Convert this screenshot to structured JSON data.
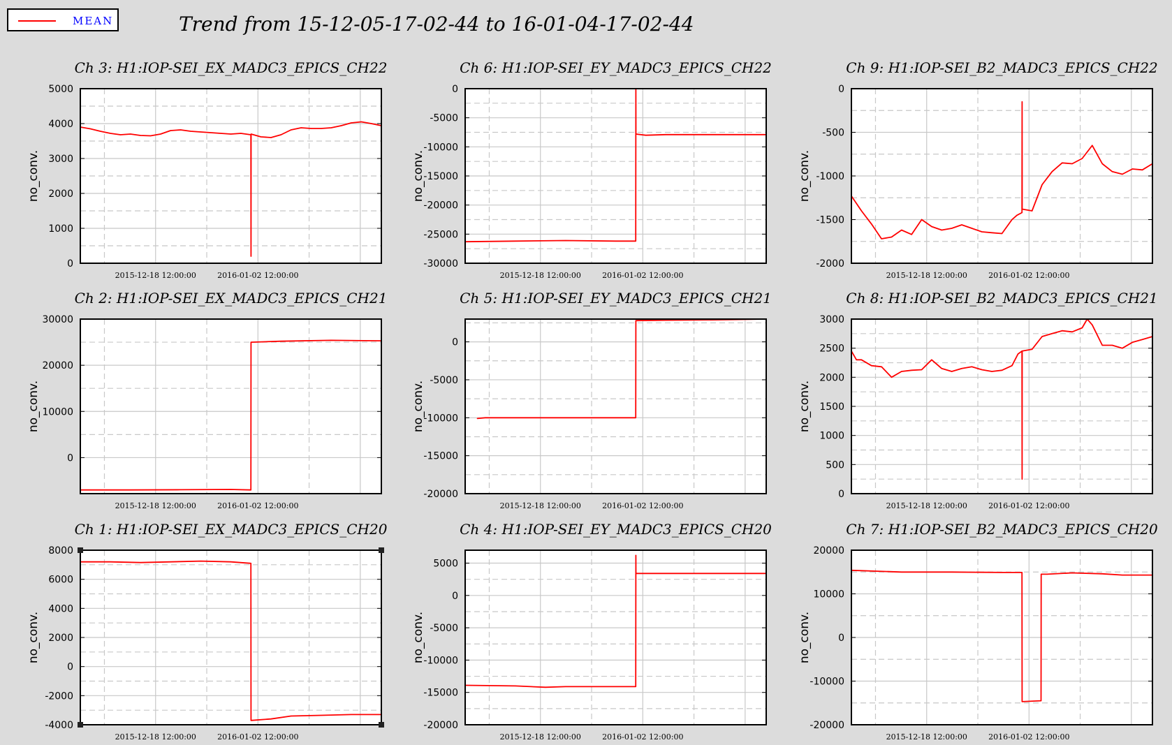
{
  "title": "Trend from 15-12-05-17-02-44 to 16-01-04-17-02-44",
  "legend": {
    "label": "MEAN",
    "color": "#ff0000"
  },
  "colors": {
    "background": "#dcdcdc",
    "plot_background": "#ffffff",
    "line": "#ff0000",
    "grid": "#c8c8c8"
  },
  "chart_data": [
    {
      "type": "line",
      "title": "Ch 3: H1:IOP-SEI_EX_MADC3_EPICS_CH22",
      "ylabel": "no_conv.",
      "xlabel": "",
      "x_ticks": [
        "2015-12-18 12:00:00",
        "2016-01-02 12:00:00"
      ],
      "xlim": [
        0,
        30
      ],
      "ylim": [
        0,
        5000
      ],
      "y_ticks": [
        0,
        1000,
        2000,
        3000,
        4000,
        5000
      ],
      "grid": true,
      "series": [
        {
          "name": "MEAN",
          "x": [
            0,
            1,
            2,
            3,
            4,
            5,
            6,
            7,
            8,
            9,
            10,
            11,
            12,
            13,
            14,
            15,
            16,
            17,
            17.01,
            17.02,
            18,
            19,
            20,
            21,
            22,
            23,
            24,
            25,
            26,
            27,
            28,
            29,
            30
          ],
          "y": [
            3900,
            3850,
            3780,
            3720,
            3680,
            3700,
            3660,
            3650,
            3700,
            3800,
            3820,
            3780,
            3760,
            3740,
            3720,
            3700,
            3720,
            3680,
            200,
            3700,
            3620,
            3600,
            3680,
            3820,
            3880,
            3860,
            3860,
            3880,
            3940,
            4020,
            4050,
            4000,
            3940
          ]
        }
      ]
    },
    {
      "type": "line",
      "title": "Ch 6: H1:IOP-SEI_EY_MADC3_EPICS_CH22",
      "ylabel": "no_conv.",
      "xlabel": "",
      "x_ticks": [
        "2015-12-18 12:00:00",
        "2016-01-02 12:00:00"
      ],
      "xlim": [
        0,
        30
      ],
      "ylim": [
        -30000,
        0
      ],
      "y_ticks": [
        -30000,
        -25000,
        -20000,
        -15000,
        -10000,
        -5000,
        0
      ],
      "grid": true,
      "series": [
        {
          "name": "MEAN",
          "x": [
            0,
            5,
            10,
            15,
            17,
            17.01,
            17.02,
            18,
            20,
            25,
            30
          ],
          "y": [
            -26300,
            -26200,
            -26100,
            -26200,
            -26200,
            0,
            -7800,
            -8000,
            -7900,
            -7900,
            -7900
          ]
        }
      ]
    },
    {
      "type": "line",
      "title": "Ch 9: H1:IOP-SEI_B2_MADC3_EPICS_CH22",
      "ylabel": "no_conv.",
      "xlabel": "",
      "x_ticks": [
        "2015-12-18 12:00:00",
        "2016-01-02 12:00:00"
      ],
      "xlim": [
        0,
        30
      ],
      "ylim": [
        -2000,
        0
      ],
      "y_ticks": [
        -2000,
        -1500,
        -1000,
        -500,
        0
      ],
      "grid": true,
      "series": [
        {
          "name": "MEAN",
          "x": [
            0,
            1,
            2,
            3,
            4,
            5,
            6,
            7,
            8,
            9,
            10,
            11,
            12,
            13,
            14,
            15,
            16,
            16.5,
            17,
            17.01,
            17.02,
            18,
            19,
            20,
            21,
            22,
            23,
            24,
            25,
            26,
            27,
            28,
            29,
            30
          ],
          "y": [
            -1230,
            -1400,
            -1550,
            -1720,
            -1700,
            -1620,
            -1670,
            -1500,
            -1580,
            -1620,
            -1600,
            -1560,
            -1600,
            -1640,
            -1650,
            -1660,
            -1500,
            -1450,
            -1420,
            -150,
            -1380,
            -1400,
            -1100,
            -950,
            -850,
            -860,
            -800,
            -650,
            -860,
            -950,
            -980,
            -920,
            -930,
            -860
          ]
        }
      ]
    },
    {
      "type": "line",
      "title": "Ch 2: H1:IOP-SEI_EX_MADC3_EPICS_CH21",
      "ylabel": "no_conv.",
      "xlabel": "",
      "x_ticks": [
        "2015-12-18 12:00:00",
        "2016-01-02 12:00:00"
      ],
      "xlim": [
        0,
        30
      ],
      "ylim": [
        -7800,
        30000
      ],
      "y_ticks": [
        0,
        10000,
        20000,
        30000
      ],
      "grid": true,
      "series": [
        {
          "name": "MEAN",
          "x": [
            0,
            5,
            10,
            15,
            17,
            17.01,
            20,
            25,
            30
          ],
          "y": [
            -7000,
            -7000,
            -6950,
            -6900,
            -7000,
            25000,
            25200,
            25400,
            25300
          ]
        }
      ]
    },
    {
      "type": "line",
      "title": "Ch 5: H1:IOP-SEI_EY_MADC3_EPICS_CH21",
      "ylabel": "no_conv.",
      "xlabel": "",
      "x_ticks": [
        "2015-12-18 12:00:00",
        "2016-01-02 12:00:00"
      ],
      "xlim": [
        0,
        30
      ],
      "ylim": [
        -20000,
        3000
      ],
      "y_ticks": [
        -20000,
        -15000,
        -10000,
        -5000,
        0
      ],
      "grid": true,
      "series": [
        {
          "name": "MEAN",
          "x": [
            1.2,
            2,
            5,
            10,
            15,
            17,
            17.01,
            20,
            25,
            30
          ],
          "y": [
            -10100,
            -10000,
            -10000,
            -10000,
            -10000,
            -10000,
            2800,
            2850,
            2900,
            3000
          ]
        }
      ]
    },
    {
      "type": "line",
      "title": "Ch 8: H1:IOP-SEI_B2_MADC3_EPICS_CH21",
      "ylabel": "no_conv.",
      "xlabel": "",
      "x_ticks": [
        "2015-12-18 12:00:00",
        "2016-01-02 12:00:00"
      ],
      "xlim": [
        0,
        30
      ],
      "ylim": [
        0,
        3000
      ],
      "y_ticks": [
        0,
        500,
        1000,
        1500,
        2000,
        2500,
        3000
      ],
      "grid": true,
      "series": [
        {
          "name": "MEAN",
          "x": [
            0,
            0.5,
            1,
            2,
            3,
            4,
            5,
            6,
            7,
            8,
            9,
            10,
            11,
            12,
            13,
            14,
            15,
            16,
            16.6,
            17,
            17.01,
            17.02,
            18,
            19,
            20,
            21,
            22,
            23,
            23.5,
            24,
            25,
            26,
            27,
            28,
            29,
            30
          ],
          "y": [
            2450,
            2300,
            2300,
            2200,
            2180,
            2000,
            2100,
            2120,
            2130,
            2300,
            2150,
            2100,
            2150,
            2180,
            2130,
            2100,
            2120,
            2200,
            2400,
            2450,
            250,
            2450,
            2480,
            2700,
            2750,
            2800,
            2780,
            2850,
            3000,
            2900,
            2550,
            2550,
            2500,
            2600,
            2650,
            2700
          ]
        }
      ]
    },
    {
      "type": "line",
      "title": "Ch 1: H1:IOP-SEI_EX_MADC3_EPICS_CH20",
      "ylabel": "no_conv.",
      "xlabel": "",
      "x_ticks": [
        "2015-12-18 12:00:00",
        "2016-01-02 12:00:00"
      ],
      "xlim": [
        0,
        30
      ],
      "ylim": [
        -4000,
        8000
      ],
      "y_ticks": [
        -4000,
        -2000,
        0,
        2000,
        4000,
        6000,
        8000
      ],
      "grid": true,
      "series": [
        {
          "name": "MEAN",
          "x": [
            0,
            3,
            6,
            9,
            12,
            15,
            17,
            17.01,
            19,
            21,
            24,
            27,
            30
          ],
          "y": [
            7200,
            7200,
            7150,
            7200,
            7250,
            7200,
            7100,
            -3700,
            -3600,
            -3400,
            -3350,
            -3300,
            -3300
          ]
        }
      ]
    },
    {
      "type": "line",
      "title": "Ch 4: H1:IOP-SEI_EY_MADC3_EPICS_CH20",
      "ylabel": "no_conv.",
      "xlabel": "",
      "x_ticks": [
        "2015-12-18 12:00:00",
        "2016-01-02 12:00:00"
      ],
      "xlim": [
        0,
        30
      ],
      "ylim": [
        -20000,
        7000
      ],
      "y_ticks": [
        -20000,
        -15000,
        -10000,
        -5000,
        0,
        5000
      ],
      "grid": true,
      "series": [
        {
          "name": "MEAN",
          "x": [
            0,
            5,
            8,
            10,
            15,
            17,
            17.01,
            17.02,
            20,
            25,
            30
          ],
          "y": [
            -13900,
            -14000,
            -14200,
            -14100,
            -14100,
            -14100,
            6200,
            3400,
            3400,
            3400,
            3400
          ]
        }
      ]
    },
    {
      "type": "line",
      "title": "Ch 7: H1:IOP-SEI_B2_MADC3_EPICS_CH20",
      "ylabel": "no_conv.",
      "xlabel": "",
      "x_ticks": [
        "2015-12-18 12:00:00",
        "2016-01-02 12:00:00"
      ],
      "xlim": [
        0,
        30
      ],
      "ylim": [
        -20000,
        20000
      ],
      "y_ticks": [
        -20000,
        -10000,
        0,
        10000,
        20000
      ],
      "grid": true,
      "series": [
        {
          "name": "MEAN",
          "x": [
            0,
            5,
            10,
            15,
            17,
            17.01,
            18.9,
            18.91,
            19.5,
            22,
            25,
            27,
            30
          ],
          "y": [
            15400,
            15000,
            15000,
            14900,
            14900,
            -14700,
            -14500,
            14500,
            14500,
            14800,
            14600,
            14300,
            14300
          ]
        }
      ]
    }
  ]
}
